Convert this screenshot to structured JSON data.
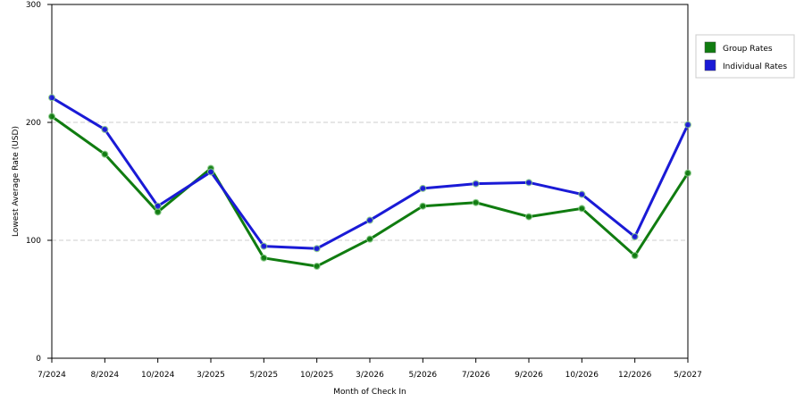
{
  "chart_data": {
    "type": "line",
    "x_label": "Month of Check In",
    "y_label": "Lowest Average Rate (USD)",
    "categories": [
      "7/2024",
      "8/2024",
      "10/2024",
      "3/2025",
      "5/2025",
      "10/2025",
      "3/2026",
      "5/2026",
      "7/2026",
      "9/2026",
      "10/2026",
      "12/2026",
      "5/2027"
    ],
    "series": [
      {
        "name": "Group Rates",
        "color": "#107c10",
        "values": [
          205,
          173,
          124,
          161,
          85,
          78,
          101,
          129,
          132,
          120,
          127,
          87,
          157
        ]
      },
      {
        "name": "Individual Rates",
        "color": "#1a1ad6",
        "values": [
          221,
          194,
          129,
          158,
          95,
          93,
          117,
          144,
          148,
          149,
          139,
          103,
          198
        ]
      }
    ],
    "ylim": [
      0,
      300
    ],
    "yticks": [
      0,
      100,
      200,
      300
    ],
    "grid": true,
    "legend": "right"
  }
}
